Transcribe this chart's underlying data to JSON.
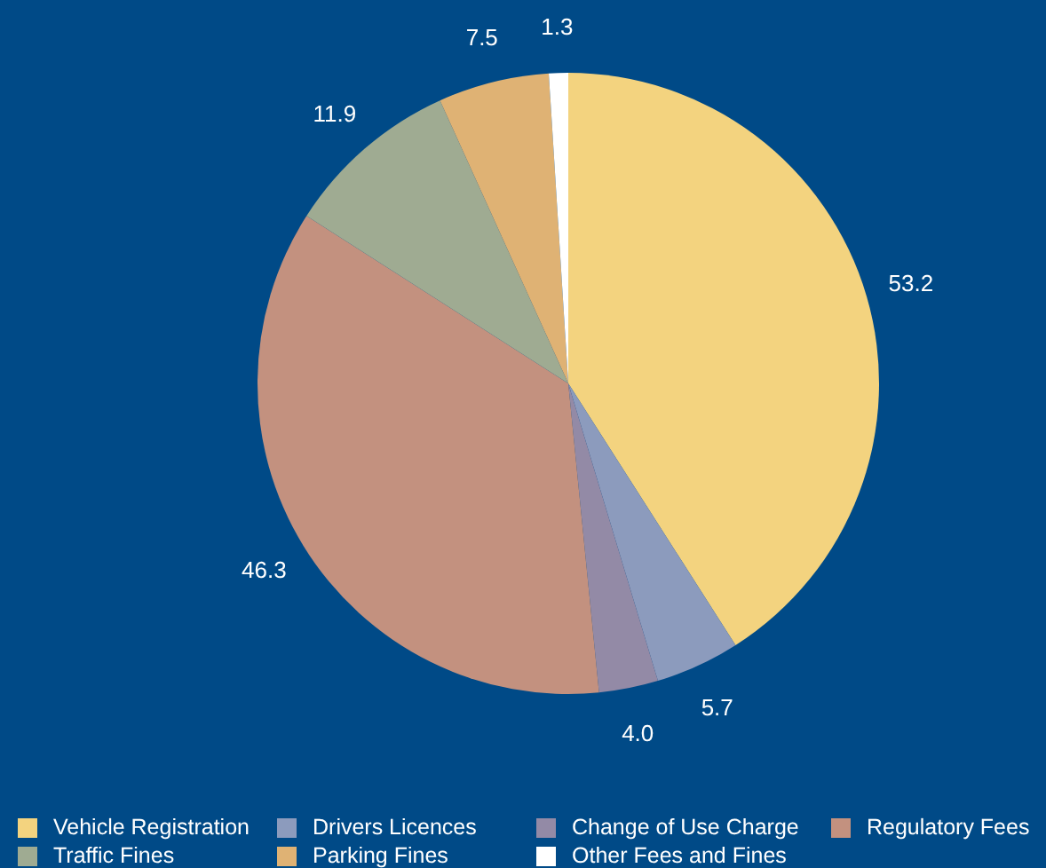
{
  "chart_data": {
    "type": "pie",
    "categories": [
      "Vehicle Registration",
      "Drivers Licences",
      "Change of Use Charge",
      "Regulatory Fees",
      "Traffic Fines",
      "Parking Fines",
      "Other Fees and Fines"
    ],
    "values": [
      53.2,
      5.7,
      4.0,
      46.3,
      11.9,
      7.5,
      1.3
    ],
    "colors": [
      "#f3d37f",
      "#8c9bbd",
      "#938aa6",
      "#c3917f",
      "#9fab92",
      "#dfb274",
      "#ffffff"
    ],
    "value_labels": [
      "53.2",
      "5.7",
      "4.0",
      "46.3",
      "11.9",
      "7.5",
      "1.3"
    ],
    "legend": "bottom"
  }
}
